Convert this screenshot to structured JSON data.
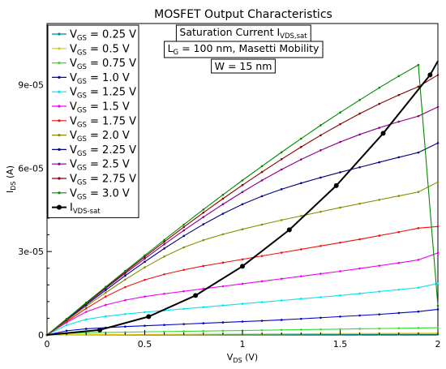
{
  "chart_data": {
    "type": "line",
    "title": "MOSFET Output Characteristics",
    "annotations": [
      {
        "id": "sat",
        "main": "Saturation Current I",
        "sub": "VDS,sat",
        "tail": ""
      },
      {
        "id": "lg",
        "main": "L",
        "sub": "G",
        "tail": " = 100 nm, Masetti Mobility"
      },
      {
        "id": "w",
        "main": "W = 15 nm",
        "sub": "",
        "tail": ""
      }
    ],
    "xlabel": {
      "main": "V",
      "sub": "DS",
      "tail": " (V)"
    },
    "ylabel": {
      "main": "I",
      "sub": "DS",
      "tail": " (A)"
    },
    "xlim": [
      0,
      2
    ],
    "ylim": [
      0,
      0.000112
    ],
    "x_ticks": [
      {
        "v": 0,
        "label": "0"
      },
      {
        "v": 0.5,
        "label": "0.5"
      },
      {
        "v": 1,
        "label": "1"
      },
      {
        "v": 1.5,
        "label": "1.5"
      },
      {
        "v": 2,
        "label": "2"
      }
    ],
    "y_ticks": [
      {
        "v": 0,
        "label": "0"
      },
      {
        "v": 3e-05,
        "label": "3e-05"
      },
      {
        "v": 6e-05,
        "label": "6e-05"
      },
      {
        "v": 9e-05,
        "label": "9e-05"
      }
    ],
    "grid": false,
    "legend_position": "top-left",
    "x": [
      0,
      0.1,
      0.2,
      0.3,
      0.4,
      0.5,
      0.6,
      0.7,
      0.8,
      0.9,
      1.0,
      1.1,
      1.2,
      1.3,
      1.4,
      1.5,
      1.6,
      1.7,
      1.8,
      1.9,
      2.0
    ],
    "series": [
      {
        "name": {
          "main": "V",
          "sub": "GS",
          "tail": " = 0.25 V"
        },
        "color": "#008b8b",
        "values": [
          0,
          2e-08,
          4e-08,
          5e-08,
          6e-08,
          7e-08,
          8e-08,
          9e-08,
          1e-07,
          1.1e-07,
          1.2e-07,
          1.3e-07,
          1.4e-07,
          1.5e-07,
          1.6e-07,
          1.7e-07,
          1.8e-07,
          1.9e-07,
          2e-07,
          2.1e-07,
          2.2e-07
        ]
      },
      {
        "name": {
          "main": "V",
          "sub": "GS",
          "tail": " = 0.5 V"
        },
        "color": "#e6c300",
        "values": [
          0,
          5e-08,
          1e-07,
          1.3e-07,
          1.6e-07,
          1.9e-07,
          2.1e-07,
          2.4e-07,
          2.7e-07,
          3e-07,
          3.3e-07,
          3.6e-07,
          3.9e-07,
          4.2e-07,
          4.5e-07,
          4.8e-07,
          5.1e-07,
          5.4e-07,
          5.7e-07,
          6e-07,
          6.3e-07
        ]
      },
      {
        "name": {
          "main": "V",
          "sub": "GS",
          "tail": " = 0.75 V"
        },
        "color": "#33dd33",
        "values": [
          0,
          5e-07,
          7.5e-07,
          9e-07,
          1e-06,
          1.1e-06,
          1.2e-06,
          1.3e-06,
          1.4e-06,
          1.5e-06,
          1.6e-06,
          1.7e-06,
          1.8e-06,
          1.9e-06,
          2e-06,
          2.1e-06,
          2.2e-06,
          2.3e-06,
          2.4e-06,
          2.5e-06,
          2.6e-06
        ]
      },
      {
        "name": {
          "main": "V",
          "sub": "GS",
          "tail": " = 1.0 V"
        },
        "color": "#0000cc",
        "values": [
          0,
          1.5e-06,
          2.2e-06,
          2.6e-06,
          3e-06,
          3.3e-06,
          3.6e-06,
          3.9e-06,
          4.2e-06,
          4.5e-06,
          4.8e-06,
          5.1e-06,
          5.4e-06,
          5.8e-06,
          6.2e-06,
          6.6e-06,
          7e-06,
          7.4e-06,
          7.9e-06,
          8.4e-06,
          9.2e-06
        ]
      },
      {
        "name": {
          "main": "V",
          "sub": "GS",
          "tail": " = 1.25 V"
        },
        "color": "#00e5ee",
        "values": [
          0,
          3.5e-06,
          5.6e-06,
          6.7e-06,
          7.5e-06,
          8.2e-06,
          8.8e-06,
          9.4e-06,
          1e-05,
          1.06e-05,
          1.12e-05,
          1.18e-05,
          1.24e-05,
          1.3e-05,
          1.36e-05,
          1.42e-05,
          1.49e-05,
          1.56e-05,
          1.63e-05,
          1.7e-05,
          1.85e-05
        ]
      },
      {
        "name": {
          "main": "V",
          "sub": "GS",
          "tail": " = 1.5 V"
        },
        "color": "#ee00ee",
        "values": [
          0,
          4.5e-06,
          8.3e-06,
          1.08e-05,
          1.25e-05,
          1.38e-05,
          1.48e-05,
          1.57e-05,
          1.66e-05,
          1.75e-05,
          1.84e-05,
          1.93e-05,
          2.02e-05,
          2.11e-05,
          2.2e-05,
          2.29e-05,
          2.39e-05,
          2.49e-05,
          2.59e-05,
          2.7e-05,
          2.95e-05
        ]
      },
      {
        "name": {
          "main": "V",
          "sub": "GS",
          "tail": " = 1.75 V"
        },
        "color": "#ee1111",
        "values": [
          0,
          4.8e-06,
          9.5e-06,
          1.38e-05,
          1.72e-05,
          1.98e-05,
          2.18e-05,
          2.34e-05,
          2.48e-05,
          2.6e-05,
          2.72e-05,
          2.84e-05,
          2.96e-05,
          3.08e-05,
          3.2e-05,
          3.32e-05,
          3.44e-05,
          3.57e-05,
          3.7e-05,
          3.84e-05,
          3.9e-05
        ]
      },
      {
        "name": {
          "main": "V",
          "sub": "GS",
          "tail": " = 2.0 V"
        },
        "color": "#8b8b00",
        "values": [
          0,
          5.2e-06,
          1.03e-05,
          1.52e-05,
          1.99e-05,
          2.43e-05,
          2.82e-05,
          3.15e-05,
          3.41e-05,
          3.62e-05,
          3.8e-05,
          3.97e-05,
          4.13e-05,
          4.28e-05,
          4.43e-05,
          4.58e-05,
          4.72e-05,
          4.86e-05,
          5e-05,
          5.14e-05,
          5.5e-05
        ]
      },
      {
        "name": {
          "main": "V",
          "sub": "GS",
          "tail": " = 2.25 V"
        },
        "color": "#000080",
        "values": [
          0,
          5.4e-06,
          1.08e-05,
          1.61e-05,
          2.13e-05,
          2.63e-05,
          3.11e-05,
          3.56e-05,
          3.98e-05,
          4.36e-05,
          4.7e-05,
          4.99e-05,
          5.24e-05,
          5.46e-05,
          5.66e-05,
          5.85e-05,
          6.03e-05,
          6.21e-05,
          6.39e-05,
          6.56e-05,
          6.9e-05
        ]
      },
      {
        "name": {
          "main": "V",
          "sub": "GS",
          "tail": " = 2.5 V"
        },
        "color": "#8b008b",
        "values": [
          0,
          5.6e-06,
          1.12e-05,
          1.67e-05,
          2.21e-05,
          2.74e-05,
          3.26e-05,
          3.76e-05,
          4.24e-05,
          4.7e-05,
          5.14e-05,
          5.56e-05,
          5.95e-05,
          6.31e-05,
          6.64e-05,
          6.94e-05,
          7.21e-05,
          7.45e-05,
          7.67e-05,
          7.87e-05,
          8.2e-05
        ]
      },
      {
        "name": {
          "main": "V",
          "sub": "GS",
          "tail": " = 2.75 V"
        },
        "color": "#8b0000",
        "values": [
          0,
          5.7e-06,
          1.14e-05,
          1.7e-05,
          2.26e-05,
          2.81e-05,
          3.35e-05,
          3.88e-05,
          4.4e-05,
          4.9e-05,
          5.39e-05,
          5.86e-05,
          6.32e-05,
          6.76e-05,
          7.18e-05,
          7.58e-05,
          7.96e-05,
          8.31e-05,
          8.63e-05,
          8.93e-05,
          9.35e-05
        ]
      },
      {
        "name": {
          "main": "V",
          "sub": "GS",
          "tail": " = 3.0 V"
        },
        "color": "#008b00",
        "values": [
          0,
          5.8e-06,
          1.16e-05,
          1.73e-05,
          2.3e-05,
          2.86e-05,
          3.42e-05,
          3.97e-05,
          4.51e-05,
          5.04e-05,
          5.56e-05,
          6.07e-05,
          6.57e-05,
          7.06e-05,
          7.54e-05,
          8e-05,
          8.45e-05,
          8.89e-05,
          9.31e-05,
          9.71e-05,
          1.05e-05
        ]
      }
    ],
    "vdsat": {
      "name": {
        "main": "I",
        "sub": "VDS-sat",
        "tail": ""
      },
      "color": "#000000",
      "points": [
        [
          0.0,
          0.0
        ],
        [
          0.27,
          1.8e-06
        ],
        [
          0.52,
          6.6e-06
        ],
        [
          0.76,
          1.42e-05
        ],
        [
          1.0,
          2.47e-05
        ],
        [
          1.24,
          3.78e-05
        ],
        [
          1.48,
          5.37e-05
        ],
        [
          1.72,
          7.25e-05
        ],
        [
          1.96,
          9.35e-05
        ],
        [
          2.0,
          9.85e-05
        ]
      ]
    }
  }
}
